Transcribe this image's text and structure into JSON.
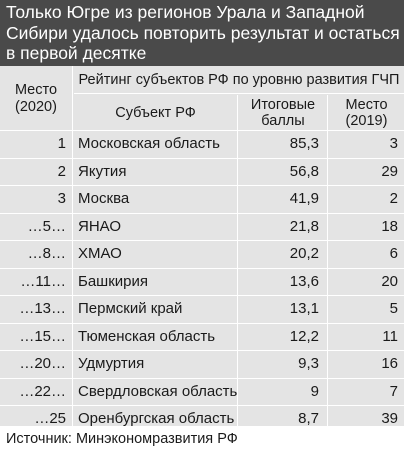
{
  "title": {
    "lines": [
      "Только Югре из регионов Урала и Западной",
      "Сибири удалось повторить результат и остаться",
      "в первой десятке"
    ]
  },
  "table": {
    "place_header": [
      "Место",
      "(2020)"
    ],
    "group_header": "Рейтинг субъектов РФ по уровню развития ГЧП",
    "subject_header": "Субъект РФ",
    "scores_header": [
      "Итоговые",
      "баллы"
    ],
    "rank2019_header": [
      "Место",
      "(2019)"
    ],
    "rows": [
      {
        "place": "1",
        "subject": "Московская область",
        "score": "85,3",
        "rank2019": "3"
      },
      {
        "place": "2",
        "subject": "Якутия",
        "score": "56,8",
        "rank2019": "29"
      },
      {
        "place": "3",
        "subject": "Москва",
        "score": "41,9",
        "rank2019": "2"
      },
      {
        "place": "…5…",
        "subject": "ЯНАО",
        "score": "21,8",
        "rank2019": "18"
      },
      {
        "place": "…8…",
        "subject": "ХМАО",
        "score": "20,2",
        "rank2019": "6"
      },
      {
        "place": "…11…",
        "subject": "Башкирия",
        "score": "13,6",
        "rank2019": "20"
      },
      {
        "place": "…13…",
        "subject": "Пермский край",
        "score": "13,1",
        "rank2019": "5"
      },
      {
        "place": "…15…",
        "subject": "Тюменская область",
        "score": "12,2",
        "rank2019": "11"
      },
      {
        "place": "…20…",
        "subject": "Удмуртия",
        "score": "9,3",
        "rank2019": "16"
      },
      {
        "place": "…22…",
        "subject": "Свердловская область",
        "score": "9",
        "rank2019": "7"
      },
      {
        "place": "…25",
        "subject": "Оренбургская область",
        "score": "8,7",
        "rank2019": "39"
      }
    ]
  },
  "source": "Источник: Минэкономразвития РФ",
  "colors": {
    "title_bg": "#4a4a4a",
    "table_bg": "#e4e4e4",
    "grid": "#ffffff"
  }
}
